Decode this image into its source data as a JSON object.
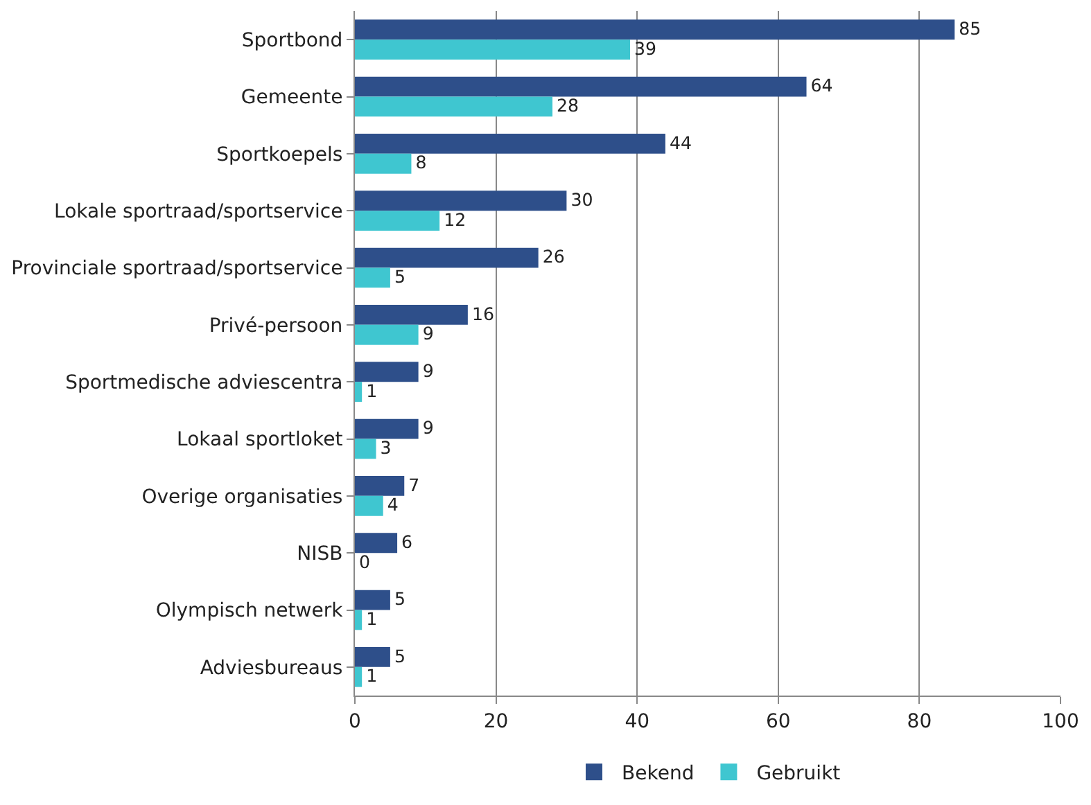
{
  "chart_data": {
    "type": "bar",
    "orientation": "horizontal",
    "categories": [
      "Sportbond",
      "Gemeente",
      "Sportkoepels",
      "Lokale sportraad/sportservice",
      "Provinciale sportraad/sportservice",
      "Privé-persoon",
      "Sportmedische adviescentra",
      "Lokaal sportloket",
      "Overige organisaties",
      "NISB",
      "Olympisch netwerk",
      "Adviesbureaus"
    ],
    "series": [
      {
        "name": "Bekend",
        "color": "#2e4f8a",
        "values": [
          85,
          64,
          44,
          30,
          26,
          16,
          9,
          9,
          7,
          6,
          5,
          5
        ]
      },
      {
        "name": "Gebruikt",
        "color": "#3fc6d0",
        "values": [
          39,
          28,
          8,
          12,
          5,
          9,
          1,
          3,
          4,
          0,
          1,
          1
        ]
      }
    ],
    "xlim": [
      0,
      100
    ],
    "xticks": [
      0,
      20,
      40,
      60,
      80,
      100
    ],
    "grid": "x",
    "legend": "bottom",
    "data_labels": true
  }
}
